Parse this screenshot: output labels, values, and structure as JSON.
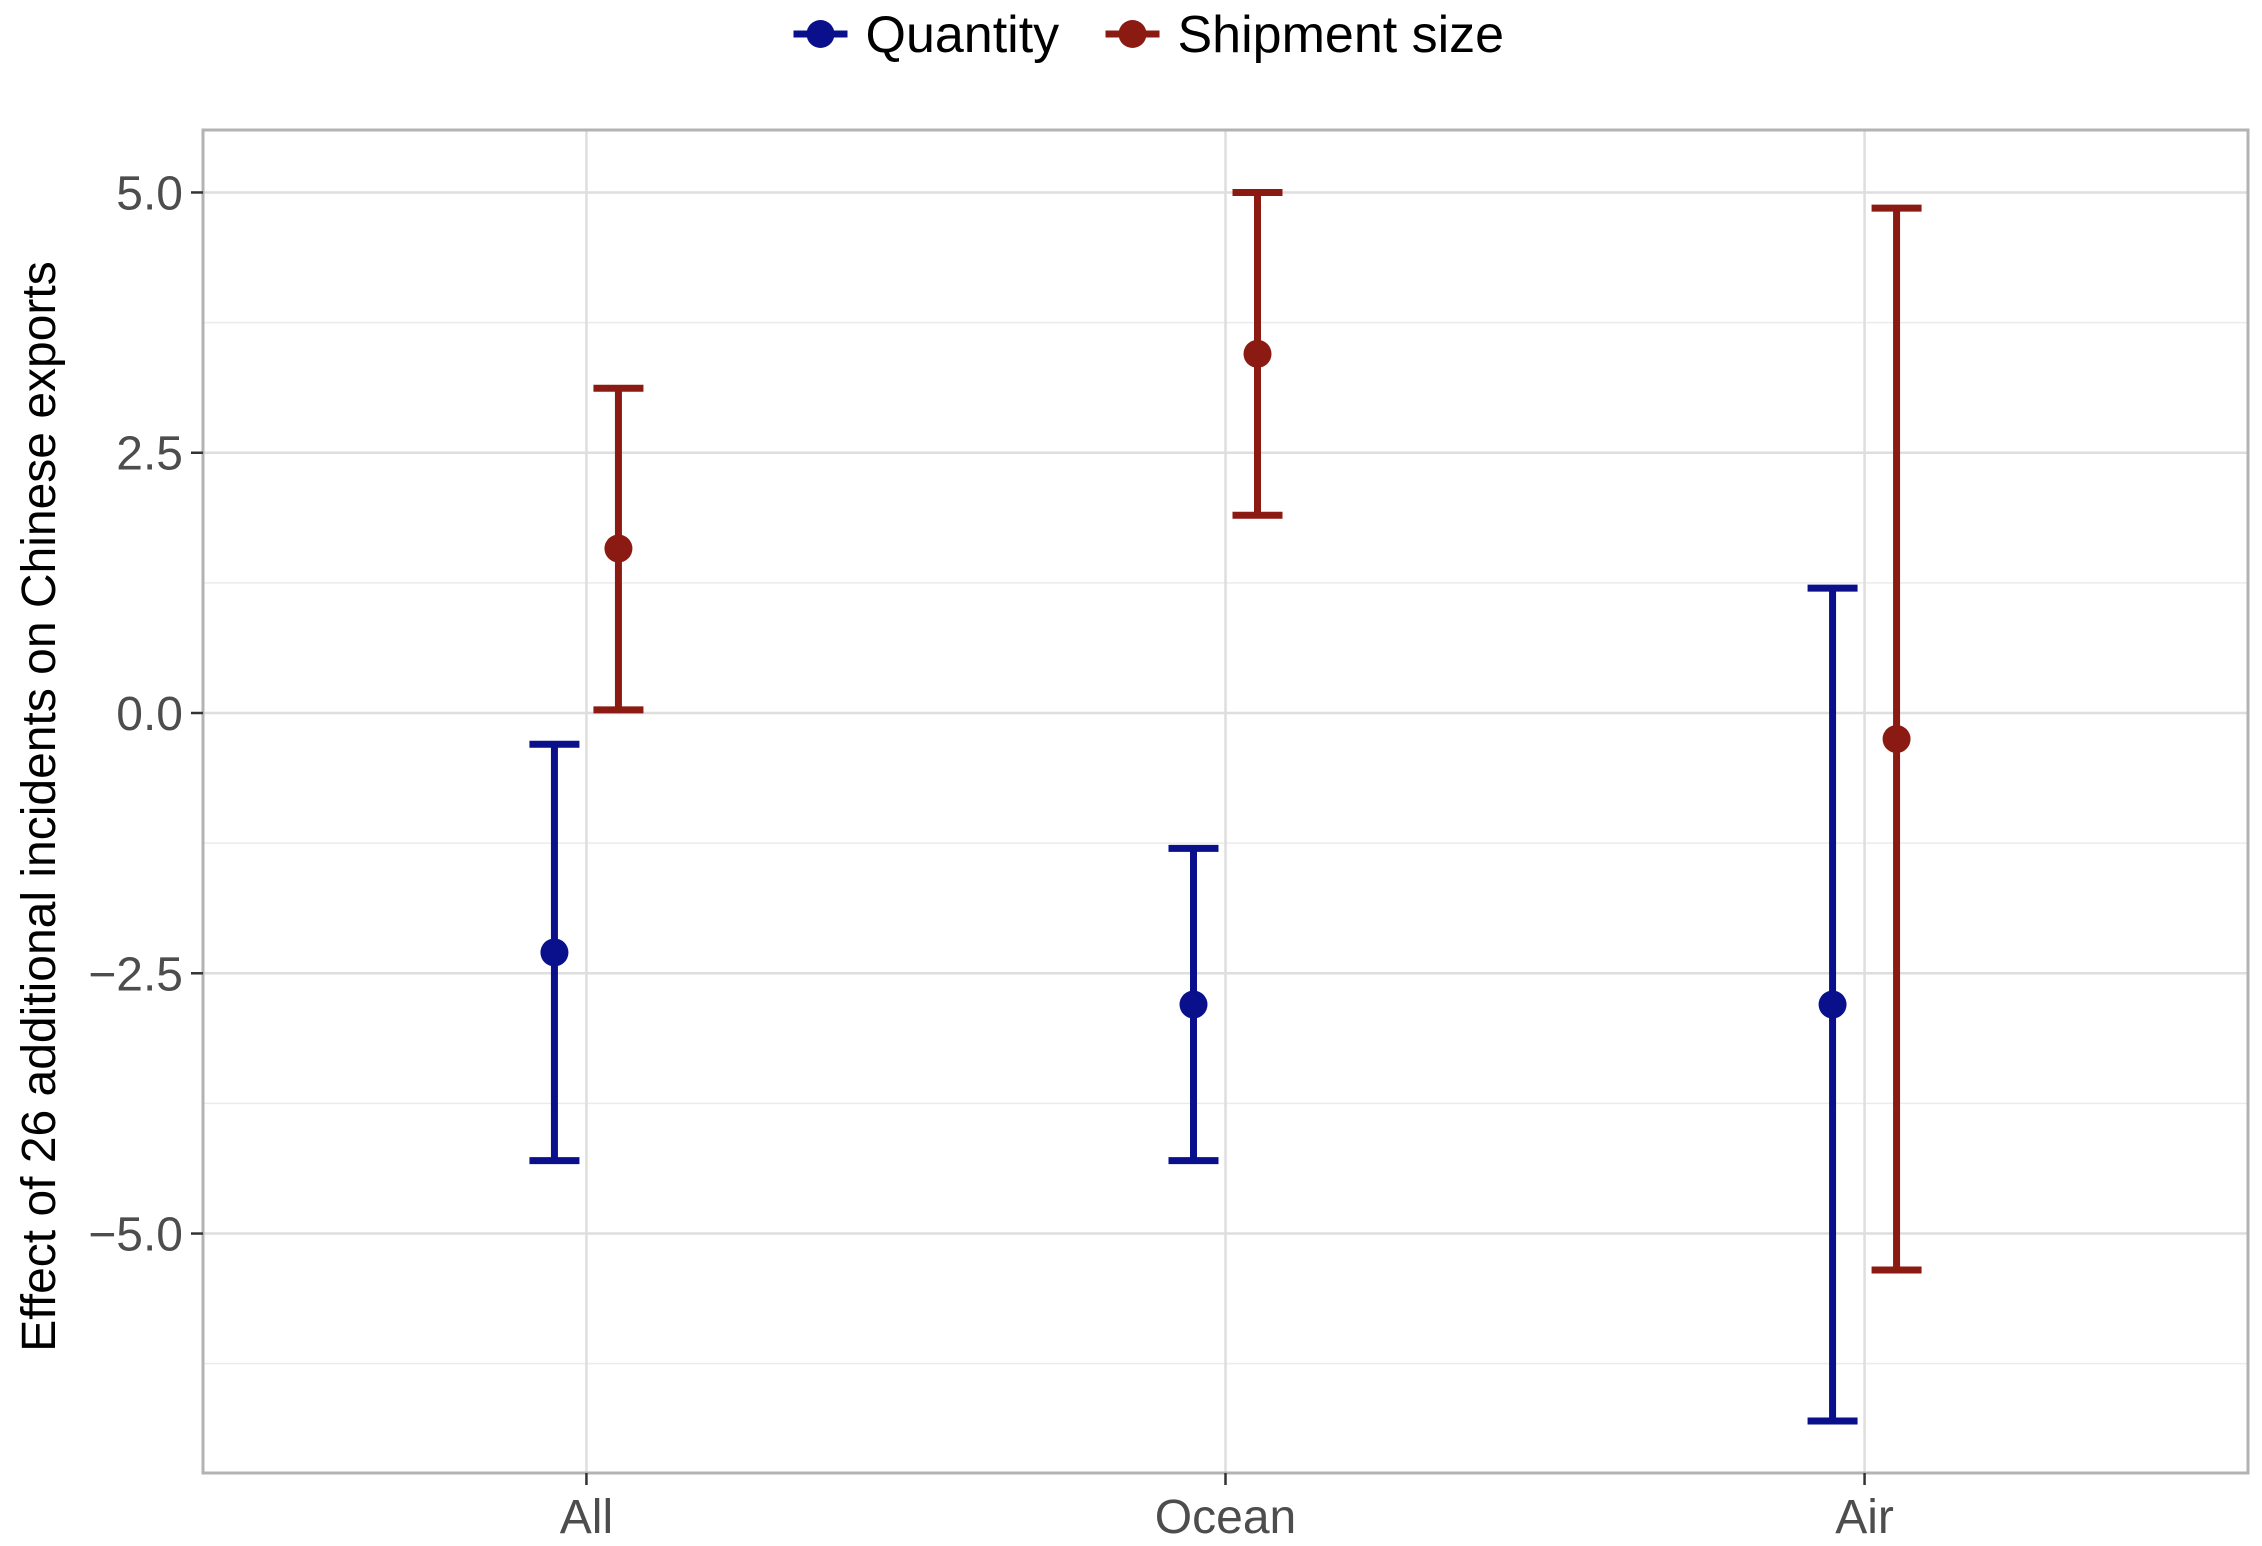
{
  "chart_data": {
    "type": "errorbar",
    "title": "",
    "xlabel": "",
    "ylabel": "Effect of 26 additional incidents on Chinese exports",
    "categories": [
      "All",
      "Ocean",
      "Air"
    ],
    "ylim": [
      -7.3,
      5.6
    ],
    "yticks": [
      5.0,
      2.5,
      0.0,
      -2.5,
      -5.0
    ],
    "ytick_labels": [
      "5.0",
      "2.5",
      "0.0",
      "−2.5",
      "−5.0"
    ],
    "grid": true,
    "legend_position": "top",
    "series": [
      {
        "name": "Quantity",
        "color": "#0a0f8c",
        "values": [
          -2.3,
          -2.8,
          -2.8
        ],
        "lower": [
          -4.3,
          -4.3,
          -6.8
        ],
        "upper": [
          -0.3,
          -1.3,
          1.2
        ]
      },
      {
        "name": "Shipment size",
        "color": "#8b1a12",
        "values": [
          1.58,
          3.45,
          -0.25
        ],
        "lower": [
          0.03,
          1.9,
          -5.35
        ],
        "upper": [
          3.12,
          5.0,
          4.85
        ]
      }
    ]
  }
}
